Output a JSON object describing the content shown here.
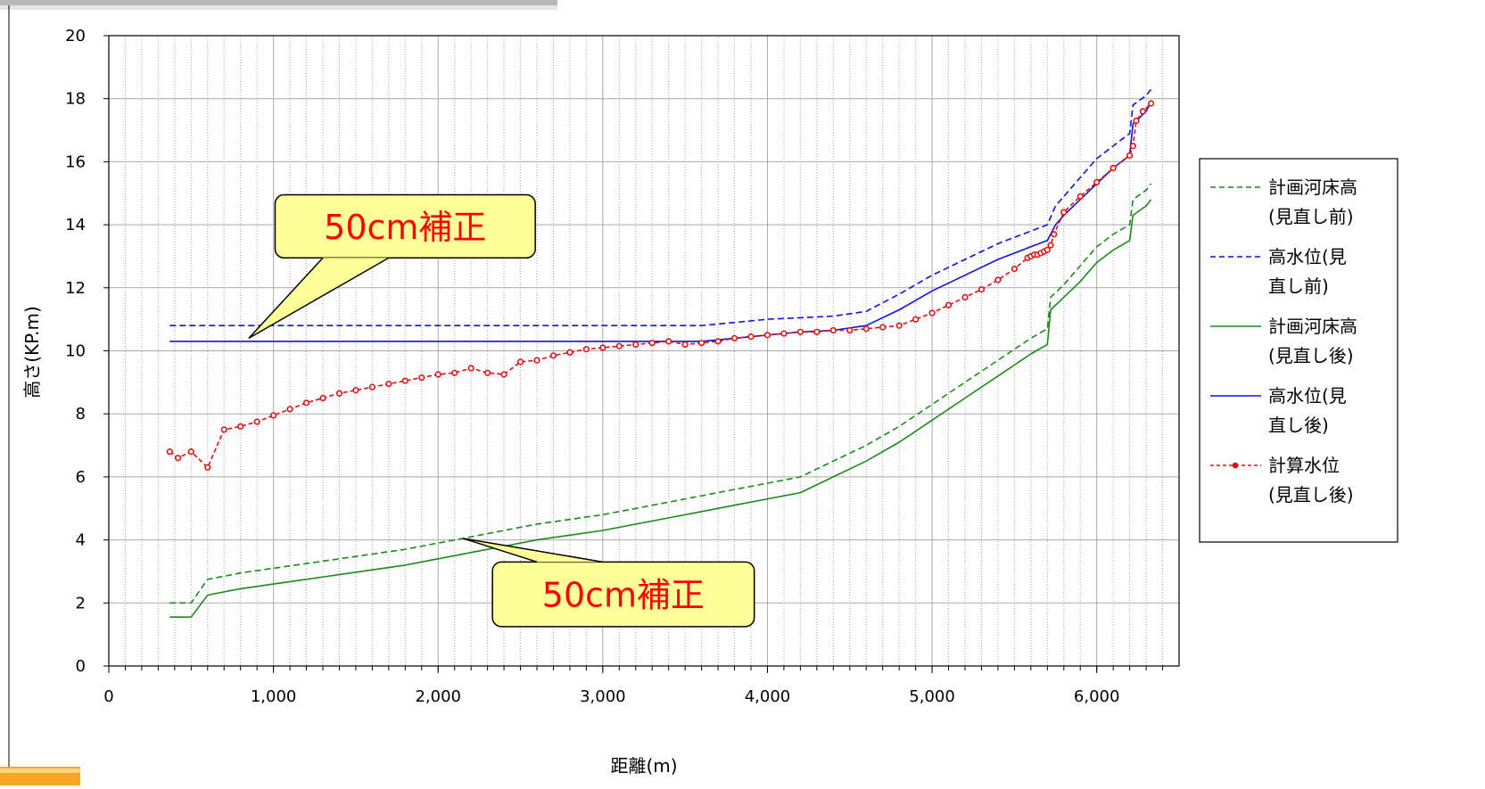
{
  "chart_data": {
    "type": "line",
    "xlabel": "距離(m)",
    "ylabel": "高さ(KP.m)",
    "xlim": [
      0,
      6500
    ],
    "ylim": [
      0,
      20
    ],
    "x_ticks": [
      0,
      1000,
      2000,
      3000,
      4000,
      5000,
      6000
    ],
    "x_tick_labels": [
      "0",
      "1,000",
      "2,000",
      "3,000",
      "4,000",
      "5,000",
      "6,000"
    ],
    "y_ticks": [
      0,
      2,
      4,
      6,
      8,
      10,
      12,
      14,
      16,
      18,
      20
    ],
    "y_tick_labels": [
      "0",
      "2",
      "4",
      "6",
      "8",
      "10",
      "12",
      "14",
      "16",
      "18",
      "20"
    ],
    "x_minor_step": 100,
    "grid": true,
    "legend_position": "right",
    "series": [
      {
        "name_lines": [
          "計画河床高",
          "(見直し前)"
        ],
        "color": "#1a8a1a",
        "style": "dashed",
        "x": [
          370,
          500,
          600,
          700,
          800,
          1000,
          1200,
          1400,
          1600,
          1800,
          2000,
          2200,
          2400,
          2600,
          2800,
          3000,
          3200,
          3400,
          3600,
          3800,
          4000,
          4200,
          4400,
          4600,
          4800,
          5000,
          5200,
          5400,
          5600,
          5700,
          5720,
          5800,
          5900,
          6000,
          6100,
          6200,
          6220,
          6300,
          6330
        ],
        "y": [
          2.0,
          2.0,
          2.75,
          2.85,
          2.95,
          3.1,
          3.25,
          3.4,
          3.55,
          3.7,
          3.9,
          4.1,
          4.3,
          4.5,
          4.65,
          4.8,
          5.0,
          5.2,
          5.4,
          5.6,
          5.8,
          6.0,
          6.5,
          7.0,
          7.6,
          8.3,
          9.0,
          9.7,
          10.4,
          10.7,
          11.7,
          12.1,
          12.7,
          13.3,
          13.7,
          14.0,
          14.8,
          15.1,
          15.3
        ]
      },
      {
        "name_lines": [
          "高水位(見",
          "直し前)"
        ],
        "color": "#1010e0",
        "style": "dashed",
        "x": [
          370,
          1000,
          2000,
          3000,
          3600,
          3800,
          4000,
          4200,
          4400,
          4600,
          4800,
          5000,
          5200,
          5400,
          5600,
          5700,
          5750,
          5800,
          5900,
          6000,
          6100,
          6200,
          6220,
          6300,
          6330
        ],
        "y": [
          10.8,
          10.8,
          10.8,
          10.8,
          10.8,
          10.9,
          11.0,
          11.05,
          11.1,
          11.25,
          11.8,
          12.4,
          12.9,
          13.4,
          13.8,
          14.0,
          14.6,
          14.9,
          15.5,
          16.1,
          16.5,
          16.9,
          17.8,
          18.1,
          18.3
        ]
      },
      {
        "name_lines": [
          "計画河床高",
          "(見直し後)"
        ],
        "color": "#1a8a1a",
        "style": "solid",
        "x": [
          370,
          500,
          600,
          700,
          800,
          1000,
          1200,
          1400,
          1600,
          1800,
          2000,
          2200,
          2400,
          2600,
          2800,
          3000,
          3200,
          3400,
          3600,
          3800,
          4000,
          4200,
          4400,
          4600,
          4800,
          5000,
          5200,
          5400,
          5600,
          5700,
          5720,
          5800,
          5900,
          6000,
          6100,
          6200,
          6220,
          6300,
          6330
        ],
        "y": [
          1.55,
          1.55,
          2.25,
          2.35,
          2.45,
          2.6,
          2.75,
          2.9,
          3.05,
          3.2,
          3.4,
          3.6,
          3.8,
          4.0,
          4.15,
          4.3,
          4.5,
          4.7,
          4.9,
          5.1,
          5.3,
          5.5,
          6.0,
          6.5,
          7.1,
          7.8,
          8.5,
          9.2,
          9.9,
          10.2,
          11.3,
          11.7,
          12.2,
          12.8,
          13.2,
          13.5,
          14.3,
          14.6,
          14.8
        ]
      },
      {
        "name_lines": [
          "高水位(見",
          "直し後)"
        ],
        "color": "#1010e0",
        "style": "solid",
        "x": [
          370,
          1000,
          2000,
          3000,
          3500,
          3600,
          3800,
          4000,
          4200,
          4400,
          4600,
          4800,
          5000,
          5200,
          5400,
          5600,
          5700,
          5750,
          5800,
          5900,
          6000,
          6100,
          6200,
          6220,
          6300,
          6330
        ],
        "y": [
          10.3,
          10.3,
          10.3,
          10.3,
          10.3,
          10.3,
          10.4,
          10.5,
          10.6,
          10.65,
          10.8,
          11.3,
          11.9,
          12.4,
          12.9,
          13.3,
          13.5,
          14.0,
          14.3,
          14.8,
          15.3,
          15.8,
          16.2,
          17.2,
          17.6,
          17.9
        ]
      },
      {
        "name_lines": [
          "計算水位",
          "(見直し後)"
        ],
        "color": "#e01010",
        "style": "dashed",
        "markers": true,
        "x": [
          370,
          420,
          500,
          600,
          700,
          800,
          900,
          1000,
          1100,
          1200,
          1300,
          1400,
          1500,
          1600,
          1700,
          1800,
          1900,
          2000,
          2100,
          2200,
          2300,
          2400,
          2500,
          2600,
          2700,
          2800,
          2900,
          3000,
          3100,
          3200,
          3300,
          3400,
          3500,
          3600,
          3700,
          3800,
          3900,
          4000,
          4100,
          4200,
          4300,
          4400,
          4500,
          4600,
          4700,
          4800,
          4900,
          5000,
          5100,
          5200,
          5300,
          5400,
          5500,
          5580,
          5600,
          5620,
          5640,
          5660,
          5680,
          5700,
          5720,
          5740,
          5800,
          5900,
          6000,
          6100,
          6200,
          6220,
          6240,
          6280,
          6330
        ],
        "y": [
          6.8,
          6.6,
          6.8,
          6.3,
          7.5,
          7.6,
          7.75,
          7.95,
          8.15,
          8.35,
          8.5,
          8.65,
          8.75,
          8.85,
          8.95,
          9.05,
          9.15,
          9.25,
          9.3,
          9.45,
          9.3,
          9.25,
          9.65,
          9.7,
          9.85,
          9.95,
          10.05,
          10.1,
          10.15,
          10.2,
          10.25,
          10.3,
          10.2,
          10.25,
          10.3,
          10.4,
          10.45,
          10.5,
          10.55,
          10.6,
          10.6,
          10.65,
          10.65,
          10.7,
          10.75,
          10.8,
          11.0,
          11.2,
          11.45,
          11.7,
          11.95,
          12.25,
          12.6,
          12.95,
          13.0,
          13.05,
          13.05,
          13.1,
          13.15,
          13.2,
          13.35,
          13.7,
          14.4,
          14.9,
          15.35,
          15.8,
          16.2,
          16.5,
          17.3,
          17.6,
          17.85
        ]
      }
    ],
    "annotations": [
      {
        "text": "50cm補正",
        "target_x": 850,
        "target_y": 10.4,
        "box_left_x": 1010,
        "box_right_x": 2590,
        "box_top_y": 14.95,
        "box_bottom_y": 12.95,
        "tail_x1": 1300,
        "tail_x2": 1700
      },
      {
        "text": "50cm補正",
        "target_x": 2150,
        "target_y": 4.05,
        "box_left_x": 2330,
        "box_right_x": 3920,
        "box_top_y": 3.3,
        "box_bottom_y": 1.25,
        "tail_x1": 2600,
        "tail_x2": 3000
      }
    ]
  },
  "colors": {
    "callout_fill": "#ffff99",
    "grid": "#a9a9a9",
    "axis": "#000000"
  }
}
